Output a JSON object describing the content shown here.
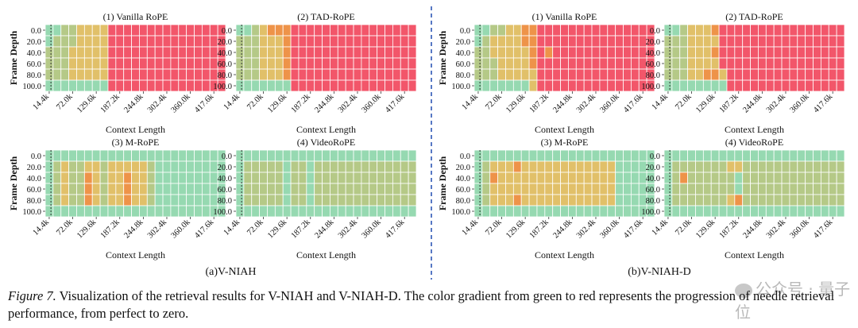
{
  "chart_data": {
    "type": "heatmap",
    "color_scale": [
      "#96d9b1",
      "#b5c987",
      "#e1c069",
      "#ee9349",
      "#f2566a"
    ],
    "color_scale_note": "green (perfect) to red (zero)",
    "groups": [
      {
        "label": "(a)V-NIAH"
      },
      {
        "label": "(b)V-NIAH-D"
      }
    ],
    "x_ticks": [
      "14.4k",
      "72.0k",
      "129.6k",
      "187.2k",
      "244.8k",
      "302.4k",
      "360.0k",
      "417.6k"
    ],
    "y_ticks": [
      "0.0",
      "20.0",
      "40.0",
      "60.0",
      "80.0",
      "100.0"
    ],
    "xlabel": "Context Length",
    "ylabel": "Frame Depth",
    "panels": [
      {
        "group": 0,
        "title": "(1) Vanilla RoPE",
        "rows": [
          "00112222444444444444444",
          "01112222444444444444444",
          "11122222444444444444444",
          "11122222444444444444444",
          "11122222444444444444444",
          "00000000444444444444444"
        ]
      },
      {
        "group": 0,
        "title": "(2) TAD-RoPE",
        "rows": [
          "00123334444444444444444",
          "11122234444444444444444",
          "11122234444444444444444",
          "11122234444444444444444",
          "11122234444444444444444",
          "00000004444444444444444"
        ]
      },
      {
        "group": 0,
        "title": "(3) M-RoPE",
        "rows": [
          "00000000000000000000000",
          "01211221222221000000000",
          "01211321223221000000000",
          "01211321223221000000000",
          "01211321223221000000000",
          "00000000000000000000000"
        ]
      },
      {
        "group": 0,
        "title": "(4) VideoRoPE",
        "rows": [
          "00000000000000000000000",
          "01111101101111111111111",
          "01111101101111111111111",
          "01111101101111111111111",
          "01111101101111111111111",
          "00000000000000000000000"
        ]
      },
      {
        "group": 1,
        "title": "(1) Vanilla RoPE",
        "rows": [
          "00112233444444444444444",
          "01222233444444444444444",
          "11222223434444444444444",
          "11122223444444444444444",
          "11122222444444444444444",
          "00000002444444444444444"
        ]
      },
      {
        "group": 1,
        "title": "(2) TAD-RoPE",
        "rows": [
          "00122234444444444444444",
          "11122224444444444444444",
          "11122234444444444444444",
          "11122224444444444444444",
          "11122332444444444444444",
          "00000000444444444444444"
        ]
      },
      {
        "group": 1,
        "title": "(3) M-RoPE",
        "rows": [
          "00000000000000000000000",
          "01222322222222222200000",
          "01322222222222222200000",
          "01222222222222222200000",
          "01222322222222222200000",
          "00000000000000000000000"
        ]
      },
      {
        "group": 1,
        "title": "(4) VideoRoPE",
        "rows": [
          "00000000000000000000000",
          "01111111221111111111111",
          "01311111101111111111111",
          "01111111101111111111111",
          "01111111231111111111111",
          "00000000000000000000000"
        ]
      }
    ]
  },
  "caption": {
    "label": "Figure 7.",
    "text": " Visualization of the retrieval results for V-NIAH and V-NIAH-D. The color gradient from green to red represents the progression of needle retrieval performance, from perfect to zero."
  },
  "watermark": "公众号 · 量子位"
}
